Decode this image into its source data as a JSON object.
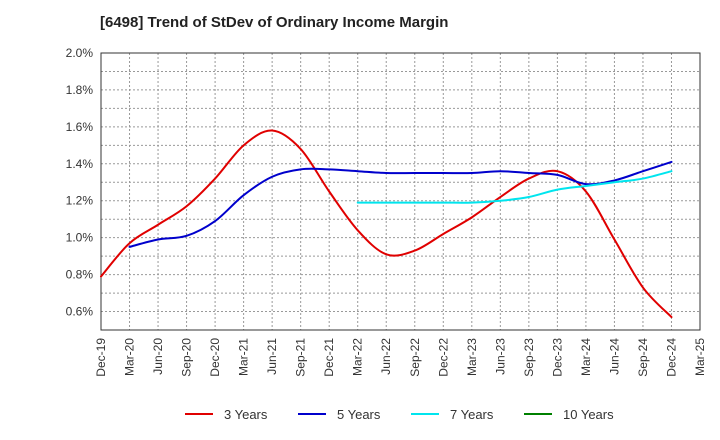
{
  "chart_data": {
    "type": "line",
    "title": "[6498]  Trend of StDev of Ordinary Income Margin",
    "xlabel": "",
    "ylabel": "",
    "ylim": [
      0.5,
      2.0
    ],
    "y_ticks": [
      0.6,
      0.8,
      1.0,
      1.2,
      1.4,
      1.6,
      1.8,
      2.0
    ],
    "y_tick_labels": [
      "0.6%",
      "0.8%",
      "1.0%",
      "1.2%",
      "1.4%",
      "1.6%",
      "1.8%",
      "2.0%"
    ],
    "x_tick_labels": [
      "Dec-19",
      "Mar-20",
      "Jun-20",
      "Sep-20",
      "Dec-20",
      "Mar-21",
      "Jun-21",
      "Sep-21",
      "Dec-21",
      "Mar-22",
      "Jun-22",
      "Sep-22",
      "Dec-22",
      "Mar-23",
      "Jun-23",
      "Sep-23",
      "Dec-23",
      "Mar-24",
      "Jun-24",
      "Sep-24",
      "Dec-24",
      "Mar-25"
    ],
    "grid": true,
    "legend_position": "bottom",
    "series": [
      {
        "name": "3 Years",
        "color": "#e00000",
        "points": [
          [
            "Dec-19",
            0.79
          ],
          [
            "Mar-20",
            0.97
          ],
          [
            "Jun-20",
            1.07
          ],
          [
            "Sep-20",
            1.17
          ],
          [
            "Dec-20",
            1.32
          ],
          [
            "Mar-21",
            1.5
          ],
          [
            "Jun-21",
            1.58
          ],
          [
            "Sep-21",
            1.48
          ],
          [
            "Dec-21",
            1.25
          ],
          [
            "Mar-22",
            1.04
          ],
          [
            "Jun-22",
            0.91
          ],
          [
            "Sep-22",
            0.93
          ],
          [
            "Dec-22",
            1.02
          ],
          [
            "Mar-23",
            1.11
          ],
          [
            "Jun-23",
            1.22
          ],
          [
            "Sep-23",
            1.32
          ],
          [
            "Dec-23",
            1.36
          ],
          [
            "Mar-24",
            1.25
          ],
          [
            "Jun-24",
            0.99
          ],
          [
            "Sep-24",
            0.73
          ],
          [
            "Dec-24",
            0.57
          ]
        ]
      },
      {
        "name": "5 Years",
        "color": "#0000cc",
        "points": [
          [
            "Mar-20",
            0.95
          ],
          [
            "Jun-20",
            0.99
          ],
          [
            "Sep-20",
            1.01
          ],
          [
            "Dec-20",
            1.09
          ],
          [
            "Mar-21",
            1.23
          ],
          [
            "Jun-21",
            1.33
          ],
          [
            "Sep-21",
            1.37
          ],
          [
            "Dec-21",
            1.37
          ],
          [
            "Mar-22",
            1.36
          ],
          [
            "Jun-22",
            1.35
          ],
          [
            "Sep-22",
            1.35
          ],
          [
            "Dec-22",
            1.35
          ],
          [
            "Mar-23",
            1.35
          ],
          [
            "Jun-23",
            1.36
          ],
          [
            "Sep-23",
            1.35
          ],
          [
            "Dec-23",
            1.34
          ],
          [
            "Mar-24",
            1.29
          ],
          [
            "Jun-24",
            1.31
          ],
          [
            "Sep-24",
            1.36
          ],
          [
            "Dec-24",
            1.41
          ]
        ]
      },
      {
        "name": "7 Years",
        "color": "#00e5ee",
        "points": [
          [
            "Mar-22",
            1.19
          ],
          [
            "Jun-22",
            1.19
          ],
          [
            "Sep-22",
            1.19
          ],
          [
            "Dec-22",
            1.19
          ],
          [
            "Mar-23",
            1.19
          ],
          [
            "Jun-23",
            1.2
          ],
          [
            "Sep-23",
            1.22
          ],
          [
            "Dec-23",
            1.26
          ],
          [
            "Mar-24",
            1.28
          ],
          [
            "Jun-24",
            1.3
          ],
          [
            "Sep-24",
            1.32
          ],
          [
            "Dec-24",
            1.36
          ]
        ]
      },
      {
        "name": "10 Years",
        "color": "#008000",
        "points": []
      }
    ]
  }
}
